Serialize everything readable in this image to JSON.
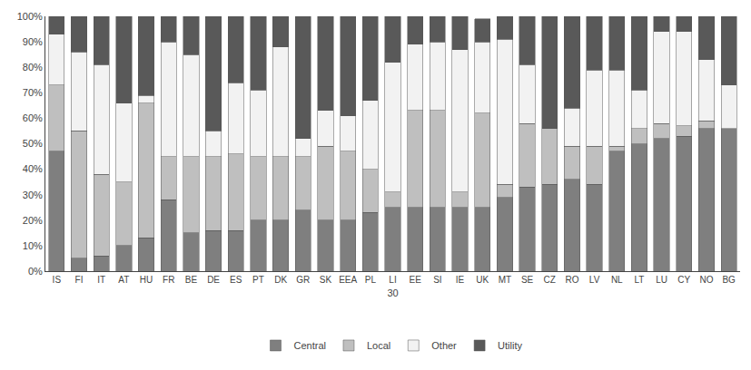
{
  "chart_data": {
    "type": "bar",
    "stacked": true,
    "xlabel": "30",
    "categories": [
      "IS",
      "FI",
      "IT",
      "AT",
      "HU",
      "FR",
      "BE",
      "DE",
      "ES",
      "PT",
      "DK",
      "GR",
      "SK",
      "EEA",
      "PL",
      "LI",
      "EE",
      "SI",
      "IE",
      "UK",
      "MT",
      "SE",
      "CZ",
      "RO",
      "LV",
      "NL",
      "LT",
      "LU",
      "CY",
      "NO",
      "BG"
    ],
    "series": [
      {
        "name": "Central",
        "color": "#7f7f7f",
        "values": [
          47,
          5,
          6,
          10,
          13,
          28,
          15,
          16,
          16,
          20,
          20,
          24,
          20,
          20,
          23,
          25,
          25,
          25,
          25,
          25,
          29,
          33,
          34,
          36,
          34,
          47,
          50,
          52,
          53,
          56,
          56
        ]
      },
      {
        "name": "Local",
        "color": "#bfbfbf",
        "values": [
          26,
          50,
          32,
          25,
          53,
          17,
          30,
          29,
          30,
          25,
          25,
          21,
          29,
          27,
          17,
          6,
          38,
          38,
          6,
          37,
          5,
          25,
          22,
          13,
          15,
          2,
          6,
          6,
          4,
          3,
          0
        ]
      },
      {
        "name": "Other",
        "color": "#f2f2f2",
        "values": [
          20,
          31,
          43,
          31,
          3,
          45,
          40,
          10,
          28,
          26,
          43,
          7,
          14,
          14,
          27,
          51,
          26,
          27,
          56,
          28,
          57,
          23,
          0,
          15,
          30,
          30,
          15,
          36,
          37,
          24,
          17
        ]
      },
      {
        "name": "Utility",
        "color": "#595959",
        "values": [
          7,
          14,
          19,
          34,
          31,
          10,
          15,
          45,
          26,
          29,
          12,
          48,
          37,
          39,
          33,
          18,
          11,
          10,
          13,
          9,
          9,
          19,
          44,
          36,
          21,
          21,
          29,
          6,
          6,
          17,
          27
        ]
      }
    ],
    "ylim": [
      0,
      100
    ],
    "yticks": [
      {
        "value": 0,
        "label": "0%"
      },
      {
        "value": 10,
        "label": "10%"
      },
      {
        "value": 20,
        "label": "20%"
      },
      {
        "value": 30,
        "label": "30%"
      },
      {
        "value": 40,
        "label": "40%"
      },
      {
        "value": 50,
        "label": "50%"
      },
      {
        "value": 60,
        "label": "60%"
      },
      {
        "value": 70,
        "label": "70%"
      },
      {
        "value": 80,
        "label": "80%"
      },
      {
        "value": 90,
        "label": "90%"
      },
      {
        "value": 100,
        "label": "100%"
      }
    ],
    "grid": false,
    "legend": "bottom"
  }
}
